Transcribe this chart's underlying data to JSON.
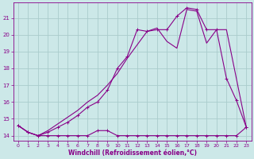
{
  "bg_color": "#cce8e8",
  "grid_color": "#aacccc",
  "line_color": "#880088",
  "xlabel": "Windchill (Refroidissement éolien,°C)",
  "xlabel_color": "#880088",
  "tick_color": "#880088",
  "ylim": [
    13.7,
    21.9
  ],
  "xlim": [
    -0.5,
    23.5
  ],
  "yticks": [
    14,
    15,
    16,
    17,
    18,
    19,
    20,
    21
  ],
  "xticks": [
    0,
    1,
    2,
    3,
    4,
    5,
    6,
    7,
    8,
    9,
    10,
    11,
    12,
    13,
    14,
    15,
    16,
    17,
    18,
    19,
    20,
    21,
    22,
    23
  ],
  "series1_x": [
    0,
    1,
    2,
    3,
    4,
    5,
    6,
    7,
    8,
    9,
    10,
    11,
    12,
    13,
    14,
    15,
    16,
    17,
    18,
    19,
    20,
    21,
    22,
    23
  ],
  "series1_y": [
    14.6,
    14.2,
    14.0,
    14.0,
    14.0,
    14.0,
    14.0,
    14.0,
    14.3,
    14.3,
    14.0,
    14.0,
    14.0,
    14.0,
    14.0,
    14.0,
    14.0,
    14.0,
    14.0,
    14.0,
    14.0,
    14.0,
    14.0,
    14.5
  ],
  "series2_x": [
    0,
    1,
    2,
    3,
    4,
    5,
    6,
    7,
    8,
    9,
    10,
    11,
    12,
    13,
    14,
    15,
    16,
    17,
    18,
    19,
    20,
    21,
    22,
    23
  ],
  "series2_y": [
    14.6,
    14.2,
    14.0,
    14.2,
    14.5,
    14.8,
    15.2,
    15.7,
    16.0,
    16.7,
    18.0,
    18.7,
    20.3,
    20.2,
    20.3,
    20.3,
    21.1,
    21.6,
    21.5,
    20.3,
    20.3,
    17.4,
    16.1,
    14.5
  ],
  "series3_x": [
    0,
    1,
    2,
    3,
    4,
    5,
    6,
    7,
    8,
    9,
    10,
    11,
    12,
    13,
    14,
    15,
    16,
    17,
    18,
    19,
    20,
    21,
    22,
    23
  ],
  "series3_y": [
    14.6,
    14.2,
    14.0,
    14.3,
    14.7,
    15.1,
    15.5,
    16.0,
    16.4,
    17.0,
    17.7,
    18.6,
    19.4,
    20.2,
    20.4,
    19.6,
    19.2,
    21.5,
    21.4,
    19.5,
    20.3,
    20.3,
    17.4,
    14.5
  ]
}
